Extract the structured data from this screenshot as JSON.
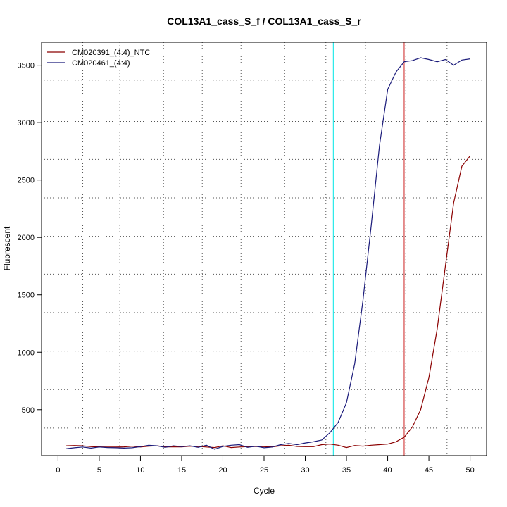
{
  "chart_data": {
    "type": "line",
    "title": "COL13A1_cass_S_f / COL13A1_cass_S_r",
    "xlabel": "Cycle",
    "ylabel": "Fluorescent",
    "xlim": [
      -2,
      52
    ],
    "ylim": [
      100,
      3700
    ],
    "xticks": [
      0,
      5,
      10,
      15,
      20,
      25,
      30,
      35,
      40,
      45,
      50
    ],
    "yticks": [
      500,
      1000,
      1500,
      2000,
      2500,
      3000,
      3500
    ],
    "grid": true,
    "grid_style": "dotted",
    "legend_position": "top-left",
    "threshold_lines": [
      {
        "x": 33.4,
        "color": "#00e5e5"
      },
      {
        "x": 42.0,
        "color": "#cc2222"
      }
    ],
    "x": [
      1,
      2,
      3,
      4,
      5,
      6,
      7,
      8,
      9,
      10,
      11,
      12,
      13,
      14,
      15,
      16,
      17,
      18,
      19,
      20,
      21,
      22,
      23,
      24,
      25,
      26,
      27,
      28,
      29,
      30,
      31,
      32,
      33,
      34,
      35,
      36,
      37,
      38,
      39,
      40,
      41,
      42,
      43,
      44,
      45,
      46,
      47,
      48,
      49,
      50
    ],
    "series": [
      {
        "name": "CM020391_(4:4)_NTC",
        "color": "#8b0000",
        "values": [
          185,
          188,
          185,
          178,
          176,
          175,
          175,
          176,
          182,
          175,
          182,
          185,
          176,
          176,
          176,
          182,
          180,
          175,
          170,
          185,
          170,
          175,
          178,
          180,
          178,
          176,
          185,
          190,
          180,
          178,
          178,
          195,
          200,
          190,
          170,
          188,
          182,
          190,
          195,
          200,
          220,
          260,
          350,
          500,
          780,
          1200,
          1750,
          2300,
          2620,
          2710
        ]
      },
      {
        "name": "CM020461_(4:4)",
        "color": "#1a1a7a",
        "values": [
          160,
          168,
          175,
          165,
          175,
          170,
          168,
          165,
          168,
          178,
          190,
          185,
          172,
          185,
          178,
          185,
          172,
          190,
          155,
          180,
          190,
          195,
          172,
          182,
          168,
          175,
          195,
          205,
          195,
          210,
          220,
          235,
          300,
          390,
          560,
          900,
          1450,
          2100,
          2800,
          3290,
          3440,
          3530,
          3540,
          3565,
          3550,
          3530,
          3550,
          3500,
          3545,
          3555
        ]
      }
    ]
  }
}
